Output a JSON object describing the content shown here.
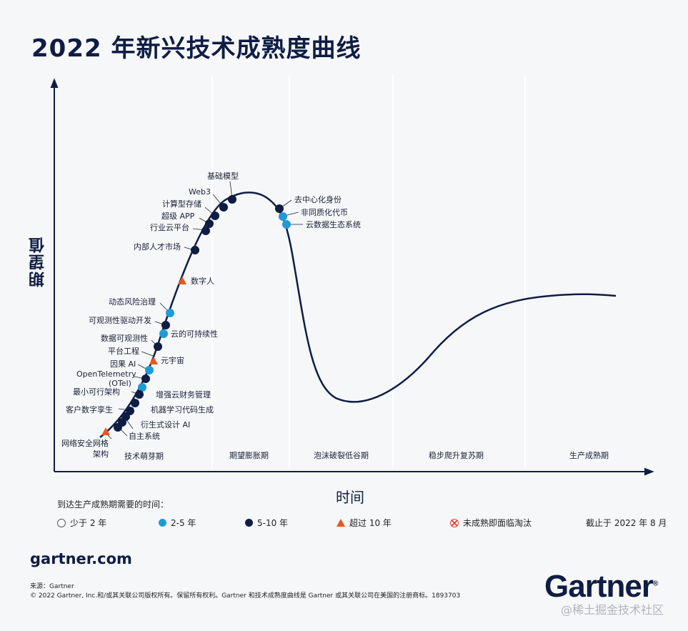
{
  "title": "2022 年新兴技术成熟度曲线",
  "colors": {
    "navy": "#0f1d45",
    "light_blue": "#1e9bd7",
    "orange": "#e8591a",
    "red": "#e0473b"
  },
  "chart_data": {
    "type": "scatter",
    "title": "2022 年新兴技术成熟度曲线",
    "xlabel": "时间",
    "ylabel": "期望值",
    "phases": [
      "技术萌芽期",
      "期望膨胀期",
      "泡沫破裂低谷期",
      "稳步爬升复苏期",
      "生产成熟期"
    ],
    "points": [
      {
        "label": "基础模型",
        "category": "5-10 年"
      },
      {
        "label": "Web3",
        "category": "5-10 年"
      },
      {
        "label": "计算型存储",
        "category": "5-10 年"
      },
      {
        "label": "超级 APP",
        "category": "5-10 年"
      },
      {
        "label": "行业云平台",
        "category": "5-10 年"
      },
      {
        "label": "内部人才市场",
        "category": "5-10 年"
      },
      {
        "label": "数字人",
        "category": "超过 10 年"
      },
      {
        "label": "动态风险治理",
        "category": "2-5 年"
      },
      {
        "label": "可观测性驱动开发",
        "category": "5-10 年"
      },
      {
        "label": "云的可持续性",
        "category": "2-5 年"
      },
      {
        "label": "数据可观测性",
        "category": "5-10 年"
      },
      {
        "label": "平台工程",
        "category": "5-10 年"
      },
      {
        "label": "元宇宙",
        "category": "超过 10 年"
      },
      {
        "label": "因果 AI",
        "category": "2-5 年"
      },
      {
        "label": "OpenTelemetry (OTel)",
        "category": "5-10 年"
      },
      {
        "label": "最小可行架构",
        "category": "2-5 年"
      },
      {
        "label": "增强云财务管理",
        "category": "5-10 年"
      },
      {
        "label": "客户数字孪生",
        "category": "5-10 年"
      },
      {
        "label": "机器学习代码生成",
        "category": "5-10 年"
      },
      {
        "label": "衍生式设计 AI",
        "category": "5-10 年"
      },
      {
        "label": "自主系统",
        "category": "5-10 年"
      },
      {
        "label": "网络安全网格架构",
        "category": "超过 10 年"
      },
      {
        "label": "去中心化身份",
        "category": "5-10 年"
      },
      {
        "label": "非同质化代币",
        "category": "2-5 年"
      },
      {
        "label": "云数据生态系统",
        "category": "2-5 年"
      }
    ]
  },
  "tech_labels": {
    "jichu": "基础模型",
    "web3": "Web3",
    "jisuan": "计算型存储",
    "chaoji": "超级 APP",
    "hangye": "行业云平台",
    "neibu": "内部人才市场",
    "shuziren": "数字人",
    "dongtai": "动态风险治理",
    "keguance": "可观测性驱动开发",
    "yunkechi": "云的可持续性",
    "shuju": "数据可观测性",
    "pingtai": "平台工程",
    "yuanyuzhou": "元宇宙",
    "yinguo": "因果 AI",
    "otel1": "OpenTelemetry",
    "otel2": "(OTel)",
    "zuixiao": "最小可行架构",
    "zengqiang": "增强云财务管理",
    "kehu": "客户数字孪生",
    "jiqi": "机器学习代码生成",
    "yansheng": "衍生式设计 AI",
    "zizhu": "自主系统",
    "wangluo1": "网络安全网格",
    "wangluo2": "架构",
    "quzhongxin": "去中心化身份",
    "feitong": "非同质化代币",
    "yunshuju": "云数据生态系统"
  },
  "legend": {
    "title": "到达生产成熟期需要的时间：",
    "items": [
      "少于 2 年",
      "2-5 年",
      "5-10 年",
      "超过 10 年",
      "未成熟即面临淘汰"
    ],
    "as_of": "截止于 2022 年 8 月"
  },
  "footer": {
    "url": "gartner.com",
    "source": "来源：Gartner",
    "copyright": "© 2022 Gartner, Inc.和/或其关联公司版权所有。保留所有权利。Gartner 和技术成熟度曲线是 Gartner 或其关联公司在美国的注册商标。1893703",
    "logo": "Gartner",
    "watermark": "@稀土掘金技术社区"
  }
}
